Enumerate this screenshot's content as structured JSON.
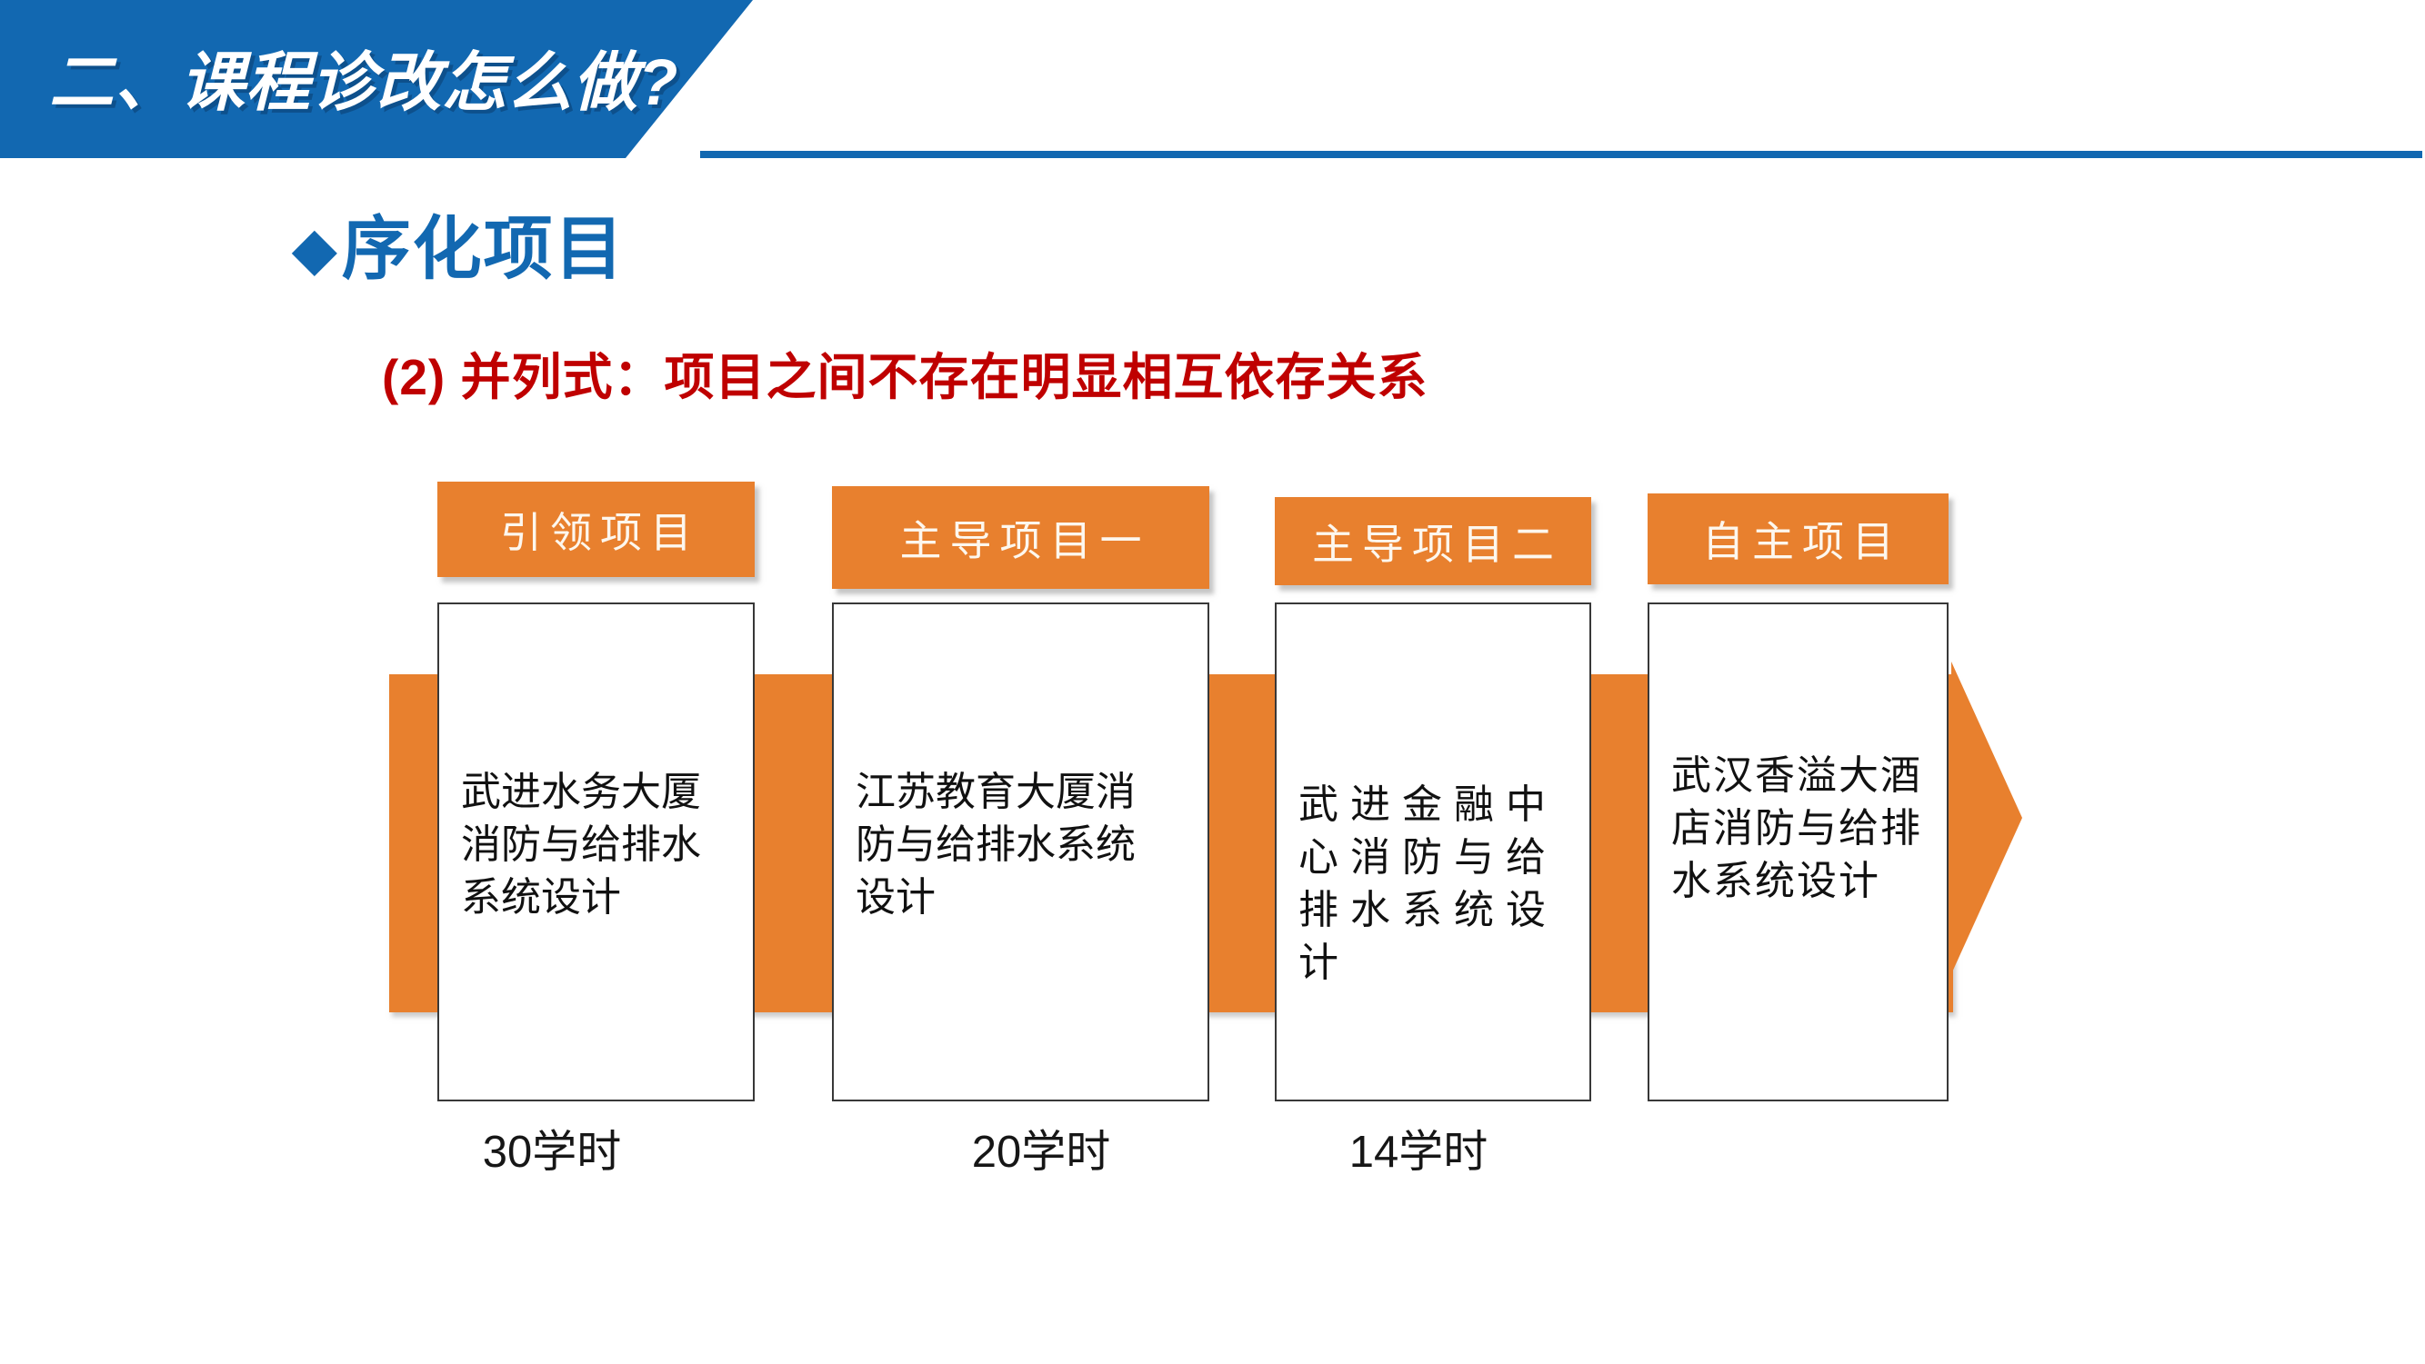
{
  "slide": {
    "banner_title": "二、课程诊改怎么做?",
    "section": {
      "bullet_icon": "◆",
      "title": "序化项目"
    },
    "subtitle": "(2) 并列式：项目之间不存在明显相互依存关系",
    "colors": {
      "banner_blue": "#1268B1",
      "accent_orange": "#E8802E",
      "subtitle_red": "#BF0000"
    },
    "projects": [
      {
        "header": "引领项目",
        "body": [
          "武进水务大厦",
          "消防与给排水",
          "系统设计"
        ],
        "hours": "30学时"
      },
      {
        "header": "主导项目一",
        "body": [
          "江苏教育大厦消",
          "防与给排水系统",
          "设计"
        ],
        "hours": "20学时"
      },
      {
        "header": "主导项目二",
        "body": [
          "武进金融中",
          "心消防与给",
          "排水系统设",
          "计"
        ],
        "hours": "14学时"
      },
      {
        "header": "自主项目",
        "body": [
          "武汉香溢大酒",
          "店消防与给排",
          "水系统设计"
        ],
        "hours": ""
      }
    ]
  }
}
